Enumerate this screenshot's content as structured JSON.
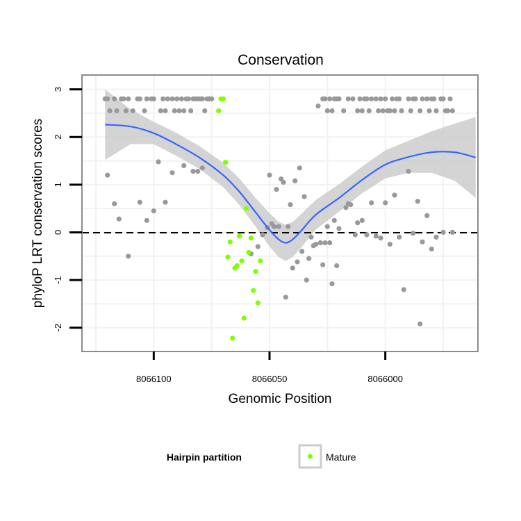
{
  "chart_data": {
    "type": "scatter",
    "title": "Conservation",
    "xlabel": "Genomic Position",
    "ylabel": "phyloP LRT conservation scores",
    "xlim": [
      8066131,
      8065960
    ],
    "x_reversed": true,
    "ylim": [
      -2.5,
      3.3
    ],
    "x_ticks": [
      8066100,
      8066050,
      8066000
    ],
    "x_tick_labels": [
      "8066100",
      "8066050",
      "8066000"
    ],
    "y_ticks": [
      -2,
      -1,
      0,
      1,
      2,
      3
    ],
    "y_tick_labels": [
      "-2",
      "-1",
      "0",
      "1",
      "2",
      "3"
    ],
    "hline": {
      "y": 0,
      "style": "dashed"
    },
    "colors": {
      "other": "#999999",
      "mature": "#80ff00",
      "smooth": "#3366ff",
      "ribbon": "#cccccc",
      "panel_border": "#8c8c8c",
      "grid": "#f2f2f2"
    },
    "legend": {
      "title": "Hairpin partition",
      "entries": [
        "Mature"
      ],
      "position": "bottom"
    },
    "series": [
      {
        "name": "Other",
        "x": [
          8066121,
          8066120,
          8066119,
          8066117,
          8066116,
          8066114,
          8066113,
          8066112,
          8066111,
          8066109,
          8066107,
          8066106,
          8066104,
          8066103,
          8066101,
          8066100,
          8066097,
          8066096,
          8066095,
          8066094,
          8066092,
          8066091,
          8066090,
          8066089,
          8066088,
          8066087,
          8066086,
          8066085,
          8066084,
          8066083,
          8066082,
          8066081,
          8066080,
          8066079,
          8066078,
          8066077,
          8066076,
          8066075,
          8066027,
          8066026,
          8066025,
          8066024,
          8066023,
          8066022,
          8066021,
          8066020,
          8066018,
          8066016,
          8066014,
          8066012,
          8066011,
          8066010,
          8066009,
          8066008,
          8066007,
          8066006,
          8066004,
          8066003,
          8066002,
          8066001,
          8066000,
          8065999,
          8065998,
          8065997,
          8065996,
          8065995,
          8065994,
          8065993,
          8065990,
          8065989,
          8065988,
          8065987,
          8065985,
          8065984,
          8065982,
          8065981,
          8065980,
          8065979,
          8065978,
          8065976,
          8065975,
          8065974,
          8065973,
          8065972,
          8065971,
          8066120,
          8066117,
          8066115,
          8066111,
          8066106,
          8066103,
          8066100,
          8066098,
          8066095,
          8066092,
          8066087,
          8066083,
          8066081,
          8066079,
          8066076,
          8066058,
          8066055,
          8066053,
          8066051,
          8066050,
          8066049,
          8066048,
          8066047,
          8066046,
          8066045,
          8066044,
          8066043,
          8066042,
          8066041,
          8066040,
          8066039,
          8066038,
          8066037,
          8066036,
          8066035,
          8066034,
          8066033,
          8066032,
          8066031,
          8066030,
          8066029,
          8066028,
          8066027,
          8066026,
          8066025,
          8066024,
          8066023,
          8066022,
          8066021,
          8066020,
          8066017,
          8066016,
          8066015,
          8066013,
          8066012,
          8066010,
          8066008,
          8066006,
          8066004,
          8066002,
          8066000,
          8065998,
          8065996,
          8065994,
          8065992,
          8065990,
          8065988,
          8065986,
          8065985,
          8065984,
          8065982,
          8065980,
          8065978,
          8065975,
          8065971
        ],
        "y": [
          2.8,
          2.8,
          2.55,
          2.8,
          2.55,
          2.8,
          2.8,
          2.55,
          2.8,
          2.55,
          2.8,
          2.8,
          2.55,
          2.8,
          2.8,
          2.8,
          2.55,
          2.8,
          2.55,
          2.8,
          2.8,
          2.55,
          2.8,
          2.55,
          2.8,
          2.55,
          2.8,
          2.8,
          2.55,
          2.8,
          2.8,
          2.8,
          2.8,
          2.8,
          2.55,
          2.8,
          2.8,
          2.8,
          2.8,
          2.8,
          2.55,
          2.8,
          2.55,
          2.8,
          2.8,
          2.8,
          2.55,
          2.8,
          2.8,
          2.55,
          2.8,
          2.55,
          2.8,
          2.8,
          2.55,
          2.8,
          2.8,
          2.55,
          2.8,
          2.55,
          2.8,
          2.55,
          2.55,
          2.8,
          2.55,
          2.8,
          2.8,
          2.55,
          2.8,
          2.55,
          2.8,
          2.8,
          2.55,
          2.8,
          2.8,
          2.55,
          2.8,
          2.8,
          2.55,
          2.8,
          2.8,
          2.55,
          2.55,
          2.8,
          2.55,
          1.2,
          0.6,
          0.28,
          -0.5,
          0.63,
          0.25,
          0.45,
          1.48,
          0.63,
          1.25,
          1.4,
          1.28,
          1.28,
          1.35,
          2.8,
          -0.45,
          -0.3,
          -0.05,
          0.1,
          1.2,
          0.18,
          0.12,
          0.9,
          0.12,
          1.12,
          1.05,
          -1.36,
          0.12,
          0.58,
          -0.75,
          1.08,
          -0.62,
          1.35,
          -0.4,
          0.75,
          -1.0,
          -0.55,
          -0.1,
          -0.28,
          -0.25,
          2.65,
          -0.22,
          -0.68,
          -0.22,
          0.12,
          -0.22,
          -1.08,
          0.25,
          -0.7,
          0.08,
          0.52,
          0.6,
          0.58,
          -0.05,
          0.2,
          0.25,
          -0.05,
          0.62,
          -0.08,
          -0.12,
          0.62,
          -0.25,
          0.78,
          -0.1,
          -1.2,
          1.28,
          -0.02,
          0.65,
          -1.92,
          -0.2,
          0.35,
          -0.35,
          -0.1,
          0.0,
          0.0
        ],
        "color": "#999999"
      },
      {
        "name": "Mature",
        "x": [
          8066072,
          8066071,
          8066070,
          8066069,
          8066068,
          8066067,
          8066066,
          8066065,
          8066064,
          8066063,
          8066062,
          8066061,
          8066060,
          8066059,
          8066058,
          8066057,
          8066056,
          8066055,
          8066054
        ],
        "y": [
          2.55,
          2.8,
          2.8,
          1.47,
          -0.52,
          -0.2,
          -2.22,
          -0.75,
          -0.7,
          -0.08,
          -0.6,
          -1.8,
          0.5,
          -0.42,
          -0.12,
          -1.22,
          -0.82,
          -1.48,
          -0.6
        ],
        "color": "#80ff00"
      }
    ],
    "smooth": {
      "x": [
        8066121,
        8066110,
        8066100,
        8066090,
        8066080,
        8066070,
        8066063,
        8066056,
        8066050,
        8066046,
        8066043,
        8066040,
        8066036,
        8066030,
        8066020,
        8066010,
        8066000,
        8065990,
        8065980,
        8065970,
        8065961
      ],
      "y": [
        2.26,
        2.22,
        2.08,
        1.84,
        1.56,
        1.2,
        0.85,
        0.42,
        0.05,
        -0.15,
        -0.22,
        -0.15,
        0.05,
        0.37,
        0.72,
        1.1,
        1.42,
        1.58,
        1.68,
        1.68,
        1.57
      ],
      "lower": [
        1.52,
        1.85,
        1.85,
        1.6,
        1.32,
        0.95,
        0.57,
        0.12,
        -0.3,
        -0.52,
        -0.6,
        -0.52,
        -0.3,
        0.06,
        0.43,
        0.82,
        1.13,
        1.25,
        1.25,
        1.08,
        0.72
      ],
      "upper": [
        3.0,
        2.58,
        2.32,
        2.08,
        1.8,
        1.46,
        1.13,
        0.72,
        0.4,
        0.22,
        0.16,
        0.22,
        0.4,
        0.68,
        1.01,
        1.38,
        1.72,
        1.92,
        2.12,
        2.28,
        2.42
      ]
    }
  }
}
